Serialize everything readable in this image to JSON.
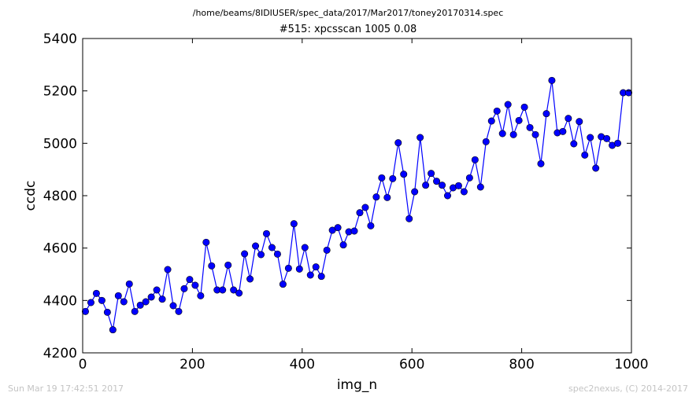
{
  "header": {
    "file_path": "/home/beams/8IDIUSER/spec_data/2017/Mar2017/toney20170314.spec",
    "scan_title": "#515: xpcsscan 1005 0.08"
  },
  "footer": {
    "timestamp": "Sun Mar 19 17:42:51 2017",
    "credit": "spec2nexus, (C) 2014-2017"
  },
  "colors": {
    "series": "#0000ff",
    "marker_fill": "#0000ff",
    "axes": "#000000"
  },
  "chart_data": {
    "type": "line",
    "title": "#515: xpcsscan 1005 0.08",
    "xlabel": "img_n",
    "ylabel": "ccdc",
    "xlim": [
      0,
      1000
    ],
    "ylim": [
      4200,
      5400
    ],
    "xticks": [
      0,
      200,
      400,
      600,
      800,
      1000
    ],
    "yticks": [
      4200,
      4400,
      4600,
      4800,
      5000,
      5200,
      5400
    ],
    "grid": false,
    "x": [
      5,
      15,
      25,
      35,
      45,
      55,
      65,
      75,
      85,
      95,
      105,
      115,
      125,
      135,
      145,
      155,
      165,
      175,
      185,
      195,
      205,
      215,
      225,
      235,
      245,
      255,
      265,
      275,
      285,
      295,
      305,
      315,
      325,
      335,
      345,
      355,
      365,
      375,
      385,
      395,
      405,
      415,
      425,
      435,
      445,
      455,
      465,
      475,
      485,
      495,
      505,
      515,
      525,
      535,
      545,
      555,
      565,
      575,
      585,
      595,
      605,
      615,
      625,
      635,
      645,
      655,
      665,
      675,
      685,
      695,
      705,
      715,
      725,
      735,
      745,
      755,
      765,
      775,
      785,
      795,
      805,
      815,
      825,
      835,
      845,
      855,
      865,
      875,
      885,
      895,
      905,
      915,
      925,
      935,
      945,
      955,
      965,
      975,
      985,
      995
    ],
    "y": [
      4358,
      4392,
      4427,
      4400,
      4355,
      4288,
      4418,
      4395,
      4463,
      4358,
      4382,
      4395,
      4413,
      4440,
      4405,
      4518,
      4380,
      4358,
      4445,
      4480,
      4458,
      4418,
      4622,
      4532,
      4440,
      4440,
      4535,
      4440,
      4428,
      4578,
      4482,
      4608,
      4575,
      4655,
      4602,
      4577,
      4462,
      4523,
      4693,
      4520,
      4602,
      4497,
      4528,
      4492,
      4592,
      4668,
      4678,
      4612,
      4662,
      4665,
      4735,
      4755,
      4685,
      4795,
      4868,
      4793,
      4865,
      5002,
      4882,
      4712,
      4815,
      5022,
      4840,
      4885,
      4855,
      4840,
      4800,
      4830,
      4838,
      4815,
      4868,
      4937,
      4833,
      5006,
      5085,
      5123,
      5037,
      5148,
      5033,
      5087,
      5138,
      5060,
      5033,
      4922,
      5113,
      5240,
      5040,
      5045,
      5095,
      4998,
      5083,
      4955,
      5022,
      4905,
      5025,
      5018,
      4992,
      5000,
      5193,
      5193
    ]
  }
}
